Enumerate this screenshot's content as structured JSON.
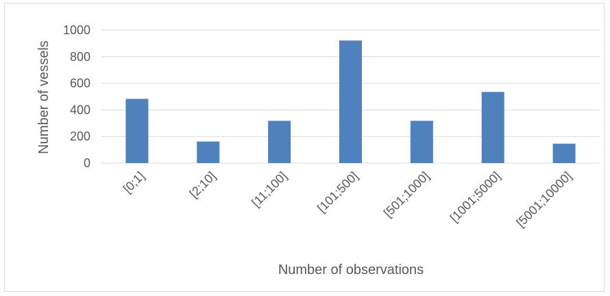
{
  "chart_data": {
    "type": "bar",
    "title": "",
    "xlabel": "Number of observations",
    "ylabel": "Number of vessels",
    "categories": [
      "[0;1]",
      "[2;10]",
      "[11;100]",
      "[101;500]",
      "[501;1000]",
      "[1001;5000]",
      "[5001;10000]"
    ],
    "values": [
      483,
      162,
      318,
      922,
      318,
      535,
      146
    ],
    "ylim": [
      0,
      1000
    ],
    "yticks": [
      0,
      200,
      400,
      600,
      800,
      1000
    ],
    "grid": true,
    "legend": "none",
    "bar_color": "#4f81bd",
    "grid_color": "#d9d9d9"
  }
}
